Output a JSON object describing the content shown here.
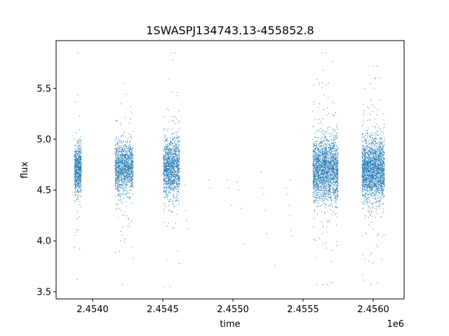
{
  "chart_data": {
    "type": "scatter",
    "title": "1SWASPJ134743.13-455852.8",
    "xlabel": "time",
    "ylabel": "flux",
    "x_offset_label": "1e6",
    "xlim": [
      2453740,
      2456220
    ],
    "ylim": [
      3.43,
      5.97
    ],
    "x_ticks": [
      2454000,
      2454500,
      2455000,
      2455500,
      2456000
    ],
    "x_tick_labels": [
      "2.4540",
      "2.4545",
      "2.4550",
      "2.4555",
      "2.4560"
    ],
    "y_ticks": [
      3.5,
      4.0,
      4.5,
      5.0,
      5.5
    ],
    "y_tick_labels": [
      "3.5",
      "4.0",
      "4.5",
      "5.0",
      "5.5"
    ],
    "grid": false,
    "point_color": "#1f77b4",
    "series": [
      {
        "segments": [
          {
            "x_start": 2453870,
            "x_end": 2453920,
            "median": 4.7,
            "spread": 0.12,
            "y_min": 3.62,
            "y_max": 5.85,
            "n": 700
          },
          {
            "x_start": 2454160,
            "x_end": 2454290,
            "median": 4.72,
            "spread": 0.12,
            "y_min": 3.57,
            "y_max": 5.55,
            "n": 1300
          },
          {
            "x_start": 2454505,
            "x_end": 2454620,
            "median": 4.72,
            "spread": 0.14,
            "y_min": 3.55,
            "y_max": 5.85,
            "n": 1300
          },
          {
            "x_start": 2455570,
            "x_end": 2455750,
            "median": 4.7,
            "spread": 0.15,
            "y_min": 3.57,
            "y_max": 5.85,
            "n": 2200
          },
          {
            "x_start": 2455920,
            "x_end": 2456080,
            "median": 4.7,
            "spread": 0.15,
            "y_min": 3.57,
            "y_max": 5.72,
            "n": 2200
          }
        ],
        "sparse_points": [
          [
            2454660,
            4.55
          ],
          [
            2454665,
            4.3
          ],
          [
            2454670,
            4.2
          ],
          [
            2454680,
            4.12
          ],
          [
            2454830,
            4.6
          ],
          [
            2454835,
            4.52
          ],
          [
            2454960,
            4.6
          ],
          [
            2454970,
            4.52
          ],
          [
            2454990,
            4.35
          ],
          [
            2455030,
            4.58
          ],
          [
            2455040,
            4.5
          ],
          [
            2455060,
            4.32
          ],
          [
            2455075,
            3.97
          ],
          [
            2455200,
            4.68
          ],
          [
            2455210,
            4.52
          ],
          [
            2455220,
            4.46
          ],
          [
            2455230,
            4.3
          ],
          [
            2455240,
            4.07
          ],
          [
            2455300,
            3.76
          ],
          [
            2455380,
            4.52
          ],
          [
            2455390,
            4.46
          ],
          [
            2455400,
            4.35
          ],
          [
            2455405,
            4.25
          ],
          [
            2455410,
            4.6
          ],
          [
            2455415,
            4.1
          ],
          [
            2455420,
            4.05
          ]
        ]
      }
    ]
  }
}
